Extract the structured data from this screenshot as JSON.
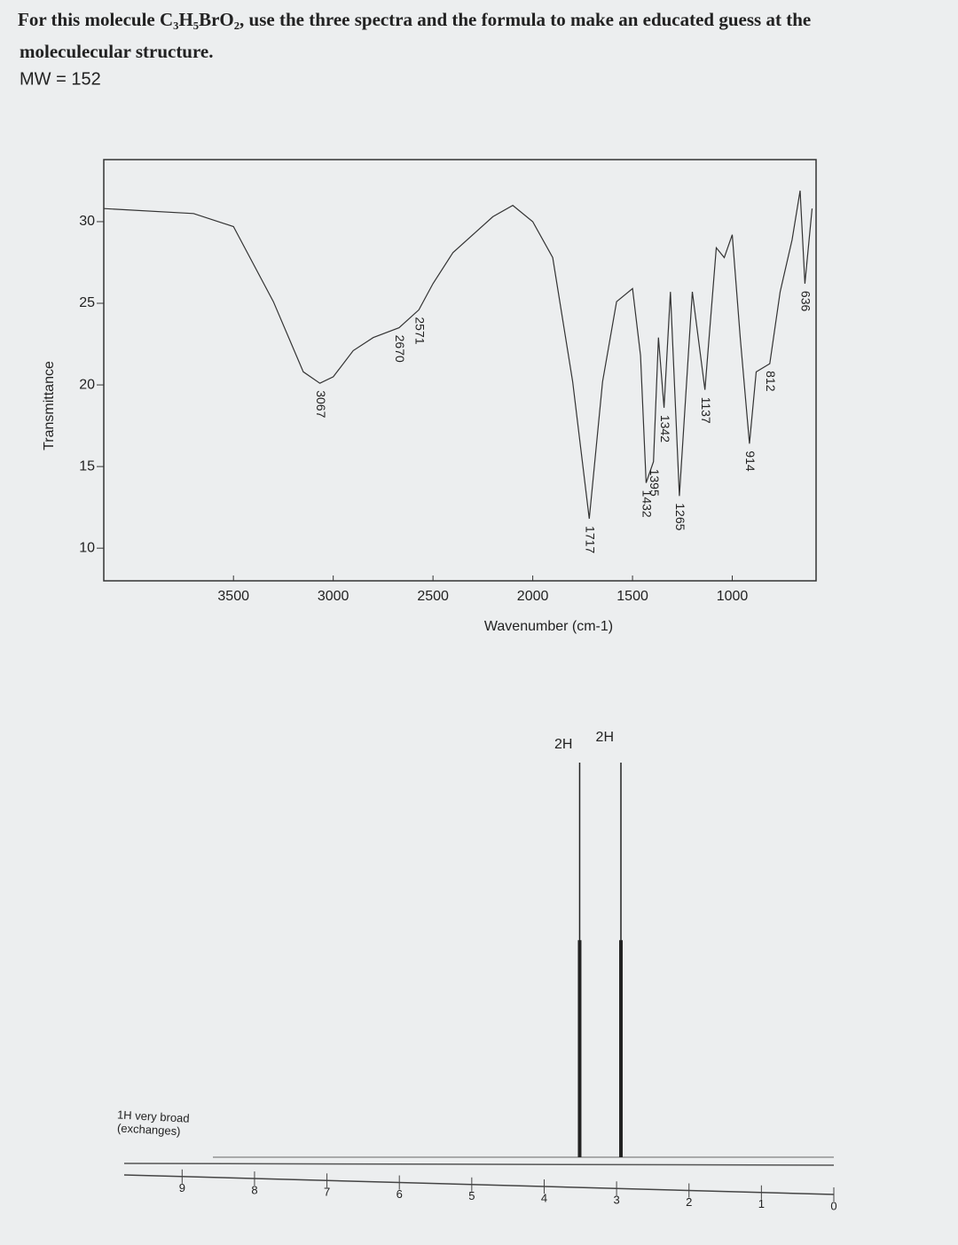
{
  "header": {
    "question": "For this molecule C₃H₅BrO₂, use the three spectra and the formula to make an educated guess at the",
    "question_2": "moleculecular structure.",
    "mw": "MW = 152"
  },
  "chart_data": [
    {
      "type": "line",
      "x_label": "Wavenumber (cm-1)",
      "y_label": "Transmittance",
      "x": [
        4150,
        3700,
        3500,
        3300,
        3150,
        3067,
        3000,
        2900,
        2800,
        2670,
        2571,
        2500,
        2400,
        2200,
        2100,
        2000,
        1900,
        1800,
        1717,
        1650,
        1580,
        1500,
        1460,
        1432,
        1395,
        1370,
        1342,
        1310,
        1265,
        1200,
        1137,
        1080,
        1040,
        1000,
        960,
        914,
        880,
        812,
        760,
        700,
        660,
        636,
        600
      ],
      "values": [
        30.8,
        30.5,
        29.7,
        25.1,
        20.8,
        20.1,
        20.5,
        22.1,
        22.9,
        23.5,
        24.6,
        26.2,
        28.1,
        30.3,
        31.0,
        30.0,
        27.8,
        20.2,
        11.8,
        20.2,
        25.1,
        25.9,
        21.8,
        14.0,
        15.3,
        22.9,
        18.6,
        25.7,
        13.2,
        25.7,
        19.7,
        28.4,
        27.8,
        29.2,
        22.9,
        16.4,
        20.8,
        21.3,
        25.7,
        28.9,
        31.9,
        26.2,
        30.8
      ],
      "color": "#333333",
      "peak_labels": [
        3067,
        2670,
        2571,
        1717,
        1432,
        1395,
        1342,
        1265,
        1137,
        914,
        812,
        636
      ],
      "xlim": [
        4150,
        580
      ],
      "xticks": [
        3500,
        3000,
        2500,
        2000,
        1500,
        1000
      ],
      "ylim": [
        8,
        33.8
      ],
      "yticks": [
        10,
        15,
        20,
        25,
        30
      ]
    },
    {
      "type": "nmr",
      "x": [
        3.51,
        2.94
      ],
      "values": [
        100,
        100
      ],
      "color": "#222222",
      "integrations": [
        "2H",
        "2H"
      ],
      "note": "1H very broad",
      "note_2": "(exchanges)",
      "xlim": [
        9.8,
        0
      ],
      "xticks": [
        9,
        8,
        7,
        6,
        5,
        4,
        3,
        2,
        1,
        0
      ],
      "ylim": [
        0,
        100
      ]
    }
  ]
}
